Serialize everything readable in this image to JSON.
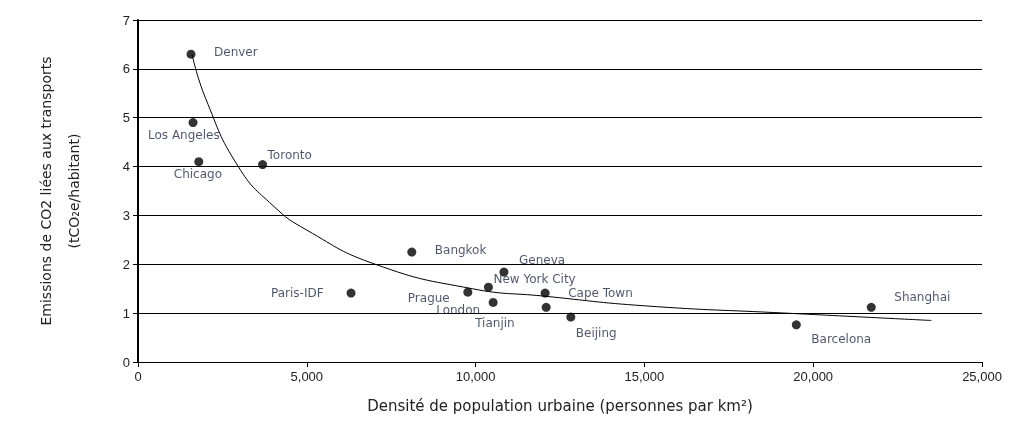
{
  "chart_data": {
    "type": "scatter",
    "xlabel": "Densité de population urbaine (personnes par km²)",
    "ylabel": "Emissions de CO2 liées aux transports\n(tCO₂e/habitant)",
    "xlim": [
      0,
      25000
    ],
    "xticks": [
      0,
      {
        "value": 5000,
        "label": "5,000"
      },
      {
        "value": 10000,
        "label": "10,000"
      },
      {
        "value": 15000,
        "label": "15,000"
      },
      {
        "value": 20000,
        "label": "20,000"
      },
      {
        "value": 25000,
        "label": "25,000"
      }
    ],
    "ylim": [
      0,
      7
    ],
    "yticks": [
      0,
      1,
      2,
      3,
      4,
      5,
      6,
      7
    ],
    "grid": "y",
    "marker": "circle",
    "series": [
      {
        "type": "scatter",
        "color": "#000000",
        "x": [
          1570,
          1630,
          1800,
          3690,
          8110,
          10840,
          10380,
          6310,
          9770,
          10520,
          12060,
          12090,
          12820,
          19500,
          21720
        ],
        "values": [
          6.3,
          4.9,
          4.1,
          4.04,
          2.25,
          1.84,
          1.53,
          1.41,
          1.43,
          1.22,
          1.41,
          1.12,
          0.92,
          0.76,
          1.12
        ]
      },
      {
        "type": "line",
        "color": "#000000",
        "marker": "none",
        "line_style": "solid",
        "x": [
          1600,
          2000,
          2970,
          4000,
          5000,
          7030,
          9900,
          12000,
          15000,
          19200,
          23500
        ],
        "values": [
          6.3,
          5.4,
          4.0,
          3.2,
          2.7,
          2.0,
          1.5,
          1.35,
          1.15,
          1.0,
          0.85
        ]
      }
    ],
    "annotations": [
      {
        "text": "Denver",
        "x": 1570,
        "y": 6.3
      },
      {
        "text": "Los Angeles",
        "x": 1630,
        "y": 4.9
      },
      {
        "text": "Chicago",
        "x": 1800,
        "y": 4.1
      },
      {
        "text": "Toronto",
        "x": 3690,
        "y": 4.04
      },
      {
        "text": "Bangkok",
        "x": 8110,
        "y": 2.25
      },
      {
        "text": "Geneva",
        "x": 10840,
        "y": 1.84
      },
      {
        "text": "New York City",
        "x": 10380,
        "y": 1.53
      },
      {
        "text": "Paris-IDF",
        "x": 6310,
        "y": 1.41
      },
      {
        "text": "Prague",
        "x": 9770,
        "y": 1.43
      },
      {
        "text": "London",
        "x": 10520,
        "y": 1.22
      },
      {
        "text": "Cape Town",
        "x": 12060,
        "y": 1.41
      },
      {
        "text": "Tianjin",
        "x": 12090,
        "y": 1.12
      },
      {
        "text": "Beijing",
        "x": 12820,
        "y": 0.92
      },
      {
        "text": "Barcelona",
        "x": 19500,
        "y": 0.76
      },
      {
        "text": "Shanghai",
        "x": 21720,
        "y": 1.12
      }
    ]
  }
}
